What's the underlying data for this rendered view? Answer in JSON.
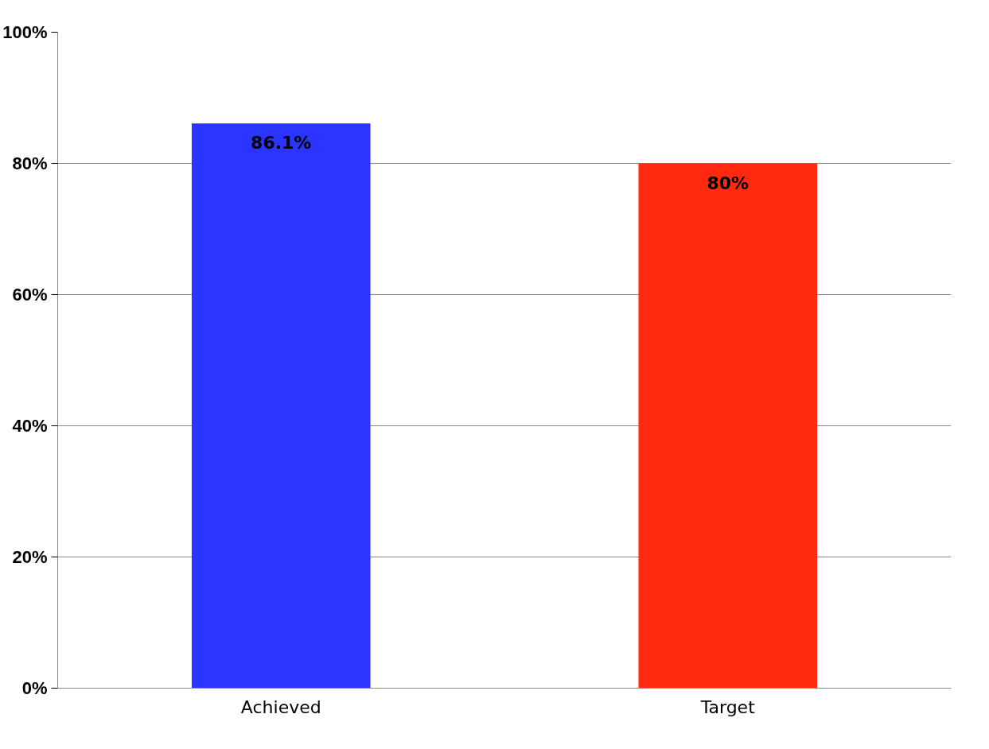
{
  "chart_data": {
    "type": "bar",
    "categories": [
      "Achieved",
      "Target"
    ],
    "values": [
      86.1,
      80
    ],
    "colors": [
      "#2b35ff",
      "#ff2a10"
    ],
    "value_labels": [
      "86.1%",
      "80%"
    ],
    "ylim": [
      0,
      100
    ],
    "yticks": [
      {
        "value": 0,
        "label": "0%"
      },
      {
        "value": 20,
        "label": "20%"
      },
      {
        "value": 40,
        "label": "40%"
      },
      {
        "value": 60,
        "label": "60%"
      },
      {
        "value": 80,
        "label": "80%"
      },
      {
        "value": 100,
        "label": "100%"
      }
    ],
    "grid": "y"
  }
}
